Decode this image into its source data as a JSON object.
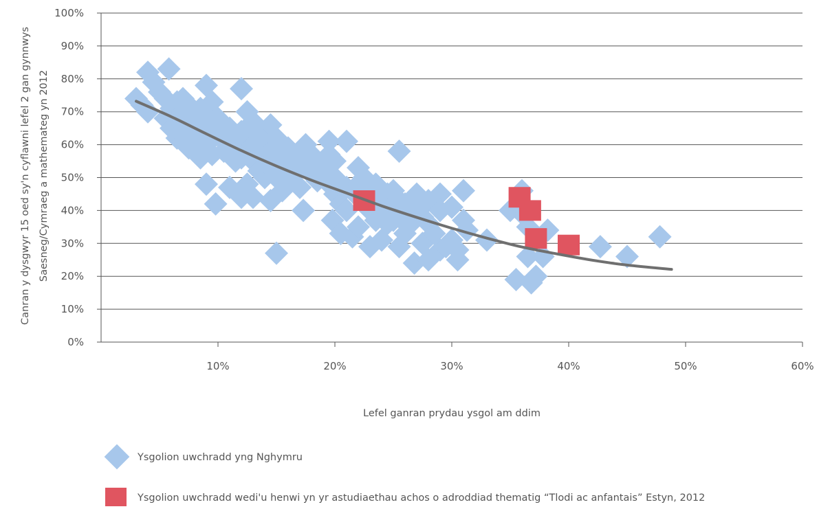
{
  "chart_data": {
    "type": "scatter",
    "xlabel": "Lefel ganran prydau ysgol am ddim",
    "ylabel_lines": [
      "Canran y dysgwyr 15 oed sy'n cyflawni lefel 2 gan gynnwys",
      "Saesneg/Cymraeg a mathemateg yn 2012"
    ],
    "xlim": [
      0,
      60
    ],
    "ylim": [
      0,
      100
    ],
    "x_ticks": [
      10,
      20,
      30,
      40,
      50,
      60
    ],
    "x_tick_labels": [
      "10%",
      "20%",
      "30%",
      "40%",
      "50%",
      "60%"
    ],
    "y_ticks": [
      0,
      10,
      20,
      30,
      40,
      50,
      60,
      70,
      80,
      90,
      100
    ],
    "y_tick_labels": [
      "0%",
      "10%",
      "20%",
      "30%",
      "40%",
      "50%",
      "60%",
      "70%",
      "80%",
      "90%",
      "100%"
    ],
    "grid": {
      "horizontal": true,
      "vertical": false
    },
    "legend_position": "bottom",
    "series": [
      {
        "name": "Ysgolion uwchradd yng Nghymru",
        "marker": "diamond",
        "color": "#a7c7eb",
        "points": [
          [
            3.0,
            74
          ],
          [
            3.5,
            72
          ],
          [
            4.0,
            70
          ],
          [
            4.0,
            82
          ],
          [
            4.5,
            79
          ],
          [
            5.0,
            76
          ],
          [
            5.5,
            74
          ],
          [
            5.5,
            68
          ],
          [
            5.8,
            83
          ],
          [
            6.0,
            71
          ],
          [
            6.0,
            65
          ],
          [
            6.5,
            73
          ],
          [
            6.5,
            68
          ],
          [
            6.5,
            62
          ],
          [
            7.0,
            74
          ],
          [
            7.0,
            70
          ],
          [
            7.0,
            66
          ],
          [
            7.0,
            61
          ],
          [
            7.5,
            72
          ],
          [
            7.5,
            68
          ],
          [
            7.5,
            64
          ],
          [
            7.5,
            59
          ],
          [
            8.0,
            70
          ],
          [
            8.0,
            66
          ],
          [
            8.0,
            62
          ],
          [
            8.0,
            58
          ],
          [
            8.5,
            71
          ],
          [
            8.5,
            67
          ],
          [
            8.5,
            63
          ],
          [
            8.5,
            56
          ],
          [
            9.0,
            78
          ],
          [
            9.0,
            69
          ],
          [
            9.0,
            65
          ],
          [
            9.0,
            60
          ],
          [
            9.0,
            48
          ],
          [
            9.5,
            73
          ],
          [
            9.5,
            67
          ],
          [
            9.5,
            62
          ],
          [
            9.5,
            57
          ],
          [
            9.8,
            42
          ],
          [
            10.0,
            68
          ],
          [
            10.0,
            64
          ],
          [
            10.5,
            66
          ],
          [
            10.5,
            61
          ],
          [
            10.5,
            58
          ],
          [
            11.0,
            65
          ],
          [
            11.0,
            62
          ],
          [
            11.0,
            47
          ],
          [
            11.5,
            63
          ],
          [
            11.5,
            58
          ],
          [
            11.5,
            55
          ],
          [
            12.0,
            77
          ],
          [
            12.0,
            64
          ],
          [
            12.0,
            60
          ],
          [
            12.0,
            56
          ],
          [
            12.0,
            44
          ],
          [
            12.5,
            70
          ],
          [
            12.5,
            62
          ],
          [
            12.5,
            58
          ],
          [
            12.5,
            48
          ],
          [
            13.0,
            67
          ],
          [
            13.0,
            60
          ],
          [
            13.0,
            55
          ],
          [
            13.0,
            44
          ],
          [
            13.5,
            63
          ],
          [
            13.5,
            57
          ],
          [
            13.5,
            52
          ],
          [
            14.0,
            61
          ],
          [
            14.0,
            56
          ],
          [
            14.0,
            50
          ],
          [
            14.5,
            66
          ],
          [
            14.5,
            58
          ],
          [
            14.5,
            53
          ],
          [
            14.5,
            43
          ],
          [
            15.0,
            62
          ],
          [
            15.0,
            55
          ],
          [
            15.0,
            50
          ],
          [
            15.0,
            27
          ],
          [
            15.5,
            57
          ],
          [
            15.5,
            52
          ],
          [
            15.5,
            46
          ],
          [
            16.0,
            59
          ],
          [
            16.0,
            54
          ],
          [
            16.0,
            49
          ],
          [
            16.5,
            56
          ],
          [
            16.5,
            51
          ],
          [
            17.0,
            58
          ],
          [
            17.0,
            53
          ],
          [
            17.0,
            47
          ],
          [
            17.3,
            40
          ],
          [
            17.5,
            60
          ],
          [
            17.5,
            55
          ],
          [
            18.0,
            57
          ],
          [
            18.0,
            51
          ],
          [
            18.5,
            54
          ],
          [
            18.5,
            49
          ],
          [
            19.0,
            52
          ],
          [
            19.5,
            61
          ],
          [
            19.5,
            57
          ],
          [
            19.5,
            48
          ],
          [
            19.8,
            37
          ],
          [
            20.0,
            55
          ],
          [
            20.0,
            50
          ],
          [
            20.0,
            45
          ],
          [
            20.5,
            42
          ],
          [
            20.5,
            33
          ],
          [
            21.0,
            61
          ],
          [
            21.0,
            47
          ],
          [
            21.0,
            40
          ],
          [
            21.5,
            32
          ],
          [
            22.0,
            53
          ],
          [
            22.0,
            48
          ],
          [
            22.0,
            44
          ],
          [
            22.0,
            35
          ],
          [
            22.5,
            50
          ],
          [
            22.5,
            46
          ],
          [
            23.0,
            44
          ],
          [
            23.0,
            40
          ],
          [
            23.0,
            29
          ],
          [
            23.5,
            48
          ],
          [
            23.5,
            42
          ],
          [
            23.5,
            37
          ],
          [
            24.0,
            46
          ],
          [
            24.0,
            39
          ],
          [
            24.0,
            31
          ],
          [
            24.5,
            45
          ],
          [
            24.5,
            40
          ],
          [
            24.5,
            36
          ],
          [
            25.0,
            46
          ],
          [
            25.0,
            41
          ],
          [
            25.0,
            37
          ],
          [
            25.5,
            58
          ],
          [
            25.5,
            43
          ],
          [
            25.5,
            38
          ],
          [
            25.5,
            29
          ],
          [
            26.0,
            42
          ],
          [
            26.0,
            37
          ],
          [
            26.0,
            33
          ],
          [
            26.5,
            40
          ],
          [
            26.5,
            36
          ],
          [
            26.8,
            24
          ],
          [
            27.0,
            45
          ],
          [
            27.0,
            41
          ],
          [
            27.5,
            38
          ],
          [
            27.5,
            30
          ],
          [
            28.0,
            43
          ],
          [
            28.0,
            36
          ],
          [
            28.0,
            25
          ],
          [
            28.5,
            33
          ],
          [
            29.0,
            45
          ],
          [
            29.0,
            40
          ],
          [
            29.0,
            28
          ],
          [
            29.5,
            29
          ],
          [
            30.0,
            41
          ],
          [
            30.0,
            31
          ],
          [
            30.5,
            28
          ],
          [
            30.5,
            25
          ],
          [
            31.0,
            46
          ],
          [
            31.0,
            37
          ],
          [
            31.3,
            34
          ],
          [
            33.0,
            31
          ],
          [
            35.0,
            40
          ],
          [
            35.5,
            19
          ],
          [
            36.0,
            46
          ],
          [
            36.0,
            41
          ],
          [
            36.3,
            38
          ],
          [
            36.5,
            35
          ],
          [
            36.5,
            26
          ],
          [
            36.8,
            18
          ],
          [
            37.2,
            20
          ],
          [
            37.8,
            26
          ],
          [
            38.2,
            34
          ],
          [
            42.7,
            29
          ],
          [
            45.0,
            26
          ],
          [
            47.8,
            32
          ]
        ]
      },
      {
        "name": "Ysgolion uwchradd wedi'u henwi yn yr astudiaethau achos o adroddiad thematig “Tlodi ac anfantais” Estyn, 2012",
        "marker": "square",
        "color": "#e05560",
        "points": [
          [
            22.5,
            43
          ],
          [
            35.8,
            44
          ],
          [
            36.7,
            40
          ],
          [
            37.2,
            31.5
          ],
          [
            40.0,
            29.5
          ]
        ]
      }
    ],
    "trendline": {
      "color": "#6f6f6f",
      "points": [
        [
          3,
          73.2
        ],
        [
          6,
          68.5
        ],
        [
          9,
          63.3
        ],
        [
          12,
          58.2
        ],
        [
          15,
          53.5
        ],
        [
          18,
          49.2
        ],
        [
          21,
          45.3
        ],
        [
          24,
          41.4
        ],
        [
          27,
          37.9
        ],
        [
          30,
          34.6
        ],
        [
          33,
          31.6
        ],
        [
          36,
          28.9
        ],
        [
          39,
          26.8
        ],
        [
          42,
          24.9
        ],
        [
          45,
          23.4
        ],
        [
          48.8,
          22.1
        ]
      ]
    }
  }
}
